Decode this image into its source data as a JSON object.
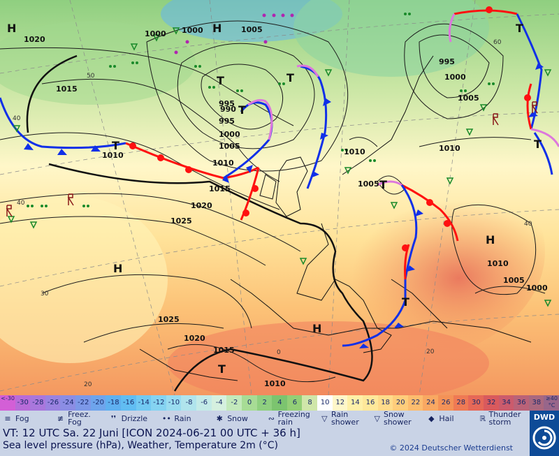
{
  "map": {
    "isobar_labels": [
      "1020",
      "1015",
      "1000",
      "1000",
      "1005",
      "995",
      "990",
      "995",
      "1000",
      "1005",
      "1010",
      "1010",
      "1015",
      "1020",
      "1025",
      "1025",
      "1020",
      "1015",
      "1010",
      "995",
      "1000",
      "1005",
      "1010",
      "1010",
      "1005",
      "1000",
      "1005",
      "1010"
    ],
    "pressure_centers": [
      "H",
      "H",
      "T",
      "T",
      "T",
      "T",
      "T",
      "H",
      "H",
      "T",
      "T",
      "H",
      "T",
      "T"
    ],
    "lat_labels": [
      "50",
      "40",
      "60",
      "40",
      "40",
      "30",
      "20",
      "20",
      "0"
    ]
  },
  "scale": {
    "values": [
      "<-30",
      "-30",
      "-28",
      "-26",
      "-24",
      "-22",
      "-20",
      "-18",
      "-16",
      "-14",
      "-12",
      "-10",
      "-8",
      "-6",
      "-4",
      "-2",
      "0",
      "2",
      "4",
      "6",
      "8",
      "10",
      "12",
      "14",
      "16",
      "18",
      "20",
      "22",
      "24",
      "26",
      "28",
      "30",
      "32",
      "34",
      "36",
      "38",
      "≥40 °C"
    ],
    "colors": [
      "#d35fd6",
      "#b76bd8",
      "#a977dc",
      "#9a82e0",
      "#8b8de4",
      "#7c98e8",
      "#6ea4ec",
      "#5fb0f0",
      "#61bdf2",
      "#72c9f2",
      "#85d3f1",
      "#9adcf0",
      "#b0e4ec",
      "#c4ebe7",
      "#d5f0df",
      "#c3e9bb",
      "#a7dc95",
      "#8fd07f",
      "#7cc46f",
      "#93cf76",
      "#cfe6a9",
      "#ffffff",
      "#fff7c9",
      "#fff0a8",
      "#ffe89a",
      "#ffdb8b",
      "#ffcd7b",
      "#fdbc6e",
      "#f9a862",
      "#f49257",
      "#ef7a54",
      "#e66857",
      "#d95a5d",
      "#cb5b6c",
      "#ba6278",
      "#a9687f",
      "#98668a"
    ]
  },
  "legend": [
    {
      "icon": "fog-icon",
      "glyph": "≡",
      "label": "Fog"
    },
    {
      "icon": "freezing-fog-icon",
      "glyph": "≢",
      "label": "Freez. Fog"
    },
    {
      "icon": "drizzle-icon",
      "glyph": "❜❜",
      "label": "Drizzle"
    },
    {
      "icon": "rain-icon",
      "glyph": "••",
      "label": "Rain"
    },
    {
      "icon": "snow-icon",
      "glyph": "✱",
      "label": "Snow"
    },
    {
      "icon": "freezing-rain-icon",
      "glyph": "∾",
      "label": "Freezing rain"
    },
    {
      "icon": "rain-shower-icon",
      "glyph": "▽",
      "label": "Rain shower"
    },
    {
      "icon": "snow-shower-icon",
      "glyph": "▽",
      "label": "Snow shower"
    },
    {
      "icon": "hail-icon",
      "glyph": "◆",
      "label": "Hail"
    },
    {
      "icon": "thunderstorm-icon",
      "glyph": "ℝ",
      "label": "Thunder storm"
    }
  ],
  "footer": {
    "valid_time": "VT: 12 UTC Sa.  22 Juni [ICON 2024-06-21  00 UTC + 36 h]",
    "description": "Sea level pressure (hPa), Weather, Temperature 2m (°C)",
    "copyright": "© 2024 Deutscher Wetterdienst",
    "logo": "DWD"
  },
  "colors": {
    "warm_front": "#ff1010",
    "cold_front": "#1030e8",
    "occlusion": "#dd77dd",
    "isobar": "#1a1a1a"
  }
}
